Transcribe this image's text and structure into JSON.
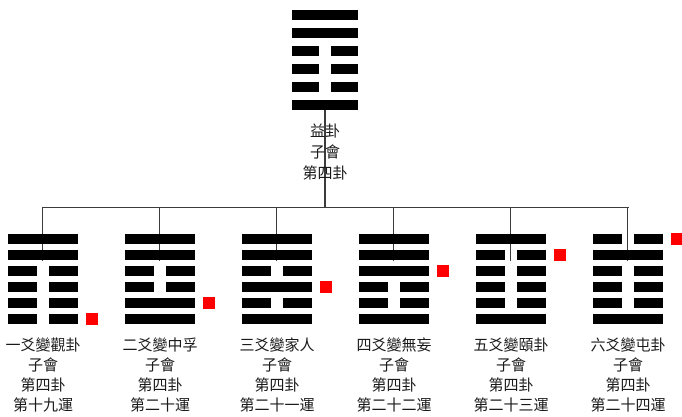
{
  "colors": {
    "background": "#ffffff",
    "bar": "#000000",
    "connector_line": "#3c3c3c",
    "changed_line_marker": "#ff0000"
  },
  "root": {
    "lines_top_to_bottom": [
      "solid",
      "solid",
      "broken",
      "broken",
      "broken",
      "solid"
    ],
    "label_lines": [
      "益卦",
      "子會",
      "第四卦"
    ]
  },
  "children": [
    {
      "lines_top_to_bottom": [
        "solid",
        "solid",
        "broken",
        "broken",
        "broken",
        "broken"
      ],
      "changed_line_from_bottom": 1,
      "label_lines": [
        "一爻變觀卦",
        "子會",
        "第四卦",
        "第十九運"
      ]
    },
    {
      "lines_top_to_bottom": [
        "solid",
        "solid",
        "broken",
        "broken",
        "solid",
        "solid"
      ],
      "changed_line_from_bottom": 2,
      "label_lines": [
        "二爻變中孚",
        "子會",
        "第四卦",
        "第二十運"
      ]
    },
    {
      "lines_top_to_bottom": [
        "solid",
        "solid",
        "broken",
        "solid",
        "broken",
        "solid"
      ],
      "changed_line_from_bottom": 3,
      "label_lines": [
        "三爻變家人",
        "子會",
        "第四卦",
        "第二十一運"
      ]
    },
    {
      "lines_top_to_bottom": [
        "solid",
        "solid",
        "solid",
        "broken",
        "broken",
        "solid"
      ],
      "changed_line_from_bottom": 4,
      "label_lines": [
        "四爻變無妄",
        "子會",
        "第四卦",
        "第二十二運"
      ]
    },
    {
      "lines_top_to_bottom": [
        "solid",
        "broken",
        "broken",
        "broken",
        "broken",
        "solid"
      ],
      "changed_line_from_bottom": 5,
      "label_lines": [
        "五爻變頤卦",
        "子會",
        "第四卦",
        "第二十三運"
      ]
    },
    {
      "lines_top_to_bottom": [
        "broken",
        "solid",
        "broken",
        "broken",
        "broken",
        "solid"
      ],
      "changed_line_from_bottom": 6,
      "label_lines": [
        "六爻變屯卦",
        "子會",
        "第四卦",
        "第二十四運"
      ]
    }
  ]
}
